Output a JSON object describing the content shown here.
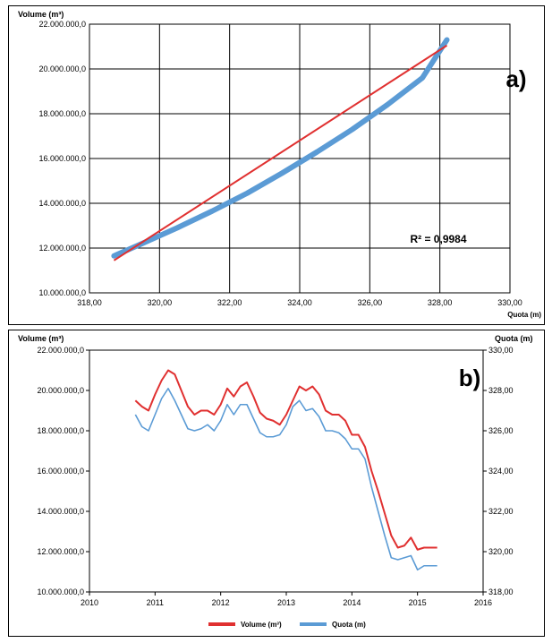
{
  "chart_data": [
    {
      "panel_label": "a)",
      "type": "scatter",
      "ylabel": "Volume (m³)",
      "xlabel": "Quota (m)",
      "xlim": [
        318,
        330
      ],
      "ylim": [
        10000000,
        22000000
      ],
      "x_ticks": [
        "318,00",
        "320,00",
        "322,00",
        "324,00",
        "326,00",
        "328,00",
        "330,00"
      ],
      "y_ticks": [
        "10.000.000,0",
        "12.000.000,0",
        "14.000.000,0",
        "16.000.000,0",
        "18.000.000,0",
        "20.000.000,0",
        "22.000.000,0"
      ],
      "annotation": "R² = 0,9984",
      "grid": true,
      "series": [
        {
          "kind": "points",
          "color": "#5b9bd5",
          "x": [
            318.7,
            319.5,
            320.5,
            321.5,
            322.5,
            323.5,
            324.5,
            325.5,
            326.5,
            327.5,
            328.2
          ],
          "y": [
            11650000,
            12200000,
            12900000,
            13650000,
            14450000,
            15350000,
            16300000,
            17300000,
            18400000,
            19600000,
            21300000
          ]
        },
        {
          "kind": "trendline",
          "color": "#e03030",
          "x": [
            318.7,
            328.2
          ],
          "y": [
            11450000,
            21050000
          ]
        }
      ]
    },
    {
      "panel_label": "b)",
      "type": "line",
      "ylabel": "Volume (m³)",
      "y2label": "Quota (m)",
      "xlim": [
        2010,
        2016
      ],
      "ylim": [
        10000000,
        22000000
      ],
      "y2lim": [
        318,
        330
      ],
      "x_ticks": [
        "2010",
        "2011",
        "2012",
        "2013",
        "2014",
        "2015",
        "2016"
      ],
      "y_ticks": [
        "10.000.000,0",
        "12.000.000,0",
        "14.000.000,0",
        "16.000.000,0",
        "18.000.000,0",
        "20.000.000,0",
        "22.000.000,0"
      ],
      "y2_ticks": [
        "318,00",
        "320,00",
        "322,00",
        "324,00",
        "326,00",
        "328,00",
        "330,00"
      ],
      "legend_position": "bottom",
      "grid": false,
      "series": [
        {
          "name": "Volume (m³)",
          "axis": "left",
          "color": "#e03030",
          "x": [
            2010.7,
            2010.8,
            2010.9,
            2011.0,
            2011.1,
            2011.2,
            2011.3,
            2011.4,
            2011.5,
            2011.6,
            2011.7,
            2011.8,
            2011.9,
            2012.0,
            2012.1,
            2012.2,
            2012.3,
            2012.4,
            2012.5,
            2012.6,
            2012.7,
            2012.8,
            2012.9,
            2013.0,
            2013.1,
            2013.2,
            2013.3,
            2013.4,
            2013.5,
            2013.6,
            2013.7,
            2013.8,
            2013.9,
            2014.0,
            2014.1,
            2014.2,
            2014.3,
            2014.4,
            2014.5,
            2014.6,
            2014.7,
            2014.8,
            2014.9,
            2015.0,
            2015.1,
            2015.2,
            2015.3
          ],
          "y": [
            19500000,
            19200000,
            19000000,
            19800000,
            20500000,
            21000000,
            20800000,
            20000000,
            19200000,
            18800000,
            19000000,
            19000000,
            18800000,
            19300000,
            20100000,
            19700000,
            20200000,
            20400000,
            19700000,
            18900000,
            18600000,
            18500000,
            18300000,
            18800000,
            19500000,
            20200000,
            20000000,
            20200000,
            19800000,
            19000000,
            18800000,
            18800000,
            18500000,
            17800000,
            17800000,
            17200000,
            16000000,
            15000000,
            13900000,
            12800000,
            12200000,
            12300000,
            12700000,
            12100000,
            12200000,
            12200000,
            12200000
          ]
        },
        {
          "name": "Quota (m)",
          "axis": "right",
          "color": "#5b9bd5",
          "x": [
            2010.7,
            2010.8,
            2010.9,
            2011.0,
            2011.1,
            2011.2,
            2011.3,
            2011.4,
            2011.5,
            2011.6,
            2011.7,
            2011.8,
            2011.9,
            2012.0,
            2012.1,
            2012.2,
            2012.3,
            2012.4,
            2012.5,
            2012.6,
            2012.7,
            2012.8,
            2012.9,
            2013.0,
            2013.1,
            2013.2,
            2013.3,
            2013.4,
            2013.5,
            2013.6,
            2013.7,
            2013.8,
            2013.9,
            2014.0,
            2014.1,
            2014.2,
            2014.3,
            2014.4,
            2014.5,
            2014.6,
            2014.7,
            2014.8,
            2014.9,
            2015.0,
            2015.1,
            2015.2,
            2015.3
          ],
          "y": [
            326.8,
            326.2,
            326.0,
            326.8,
            327.6,
            328.1,
            327.5,
            326.8,
            326.1,
            326.0,
            326.1,
            326.3,
            326.0,
            326.5,
            327.3,
            326.8,
            327.3,
            327.3,
            326.6,
            325.9,
            325.7,
            325.7,
            325.8,
            326.3,
            327.2,
            327.5,
            327.0,
            327.1,
            326.7,
            326.0,
            326.0,
            325.9,
            325.6,
            325.1,
            325.1,
            324.6,
            323.2,
            322.0,
            320.8,
            319.7,
            319.6,
            319.7,
            319.8,
            319.1,
            319.3,
            319.3,
            319.3
          ]
        }
      ]
    }
  ]
}
